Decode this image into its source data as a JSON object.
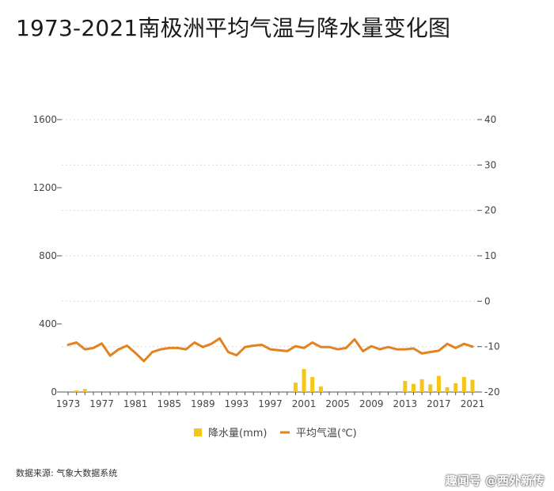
{
  "title": "1973-2021南极洲平均气温与降水量变化图",
  "source": "数据来源: 气象大数据系统",
  "watermark": "趣闻号 @西外新传",
  "colors": {
    "bar": "#f5c518",
    "line": "#e3821f",
    "grid": "#d9d9d9",
    "axis": "#555555"
  },
  "chart_data": {
    "type": "bar+line",
    "title": "1973-2021南极洲平均气温与降水量变化图",
    "x_tick_labels": [
      "1973",
      "1977",
      "1981",
      "1985",
      "1989",
      "1993",
      "1997",
      "2001",
      "2005",
      "2009",
      "2013",
      "2017",
      "2021"
    ],
    "y_left": {
      "lim": [
        0,
        1600
      ],
      "ticks": [
        0,
        400,
        800,
        1200,
        1600
      ]
    },
    "y_right": {
      "lim": [
        -20,
        40
      ],
      "ticks": [
        -20,
        -10,
        0,
        10,
        20,
        30,
        40
      ]
    },
    "grid": true,
    "legend_position": "bottom",
    "series": [
      {
        "name": "降水量(mm)",
        "type": "bar",
        "axis": "left",
        "x": [
          1973,
          1974,
          1975,
          1976,
          1977,
          1978,
          1979,
          1980,
          1981,
          1982,
          1983,
          1984,
          1985,
          1986,
          1987,
          1988,
          1989,
          1990,
          1991,
          1992,
          1993,
          1994,
          1995,
          1996,
          1997,
          1998,
          1999,
          2000,
          2001,
          2002,
          2003,
          2004,
          2005,
          2006,
          2007,
          2008,
          2009,
          2010,
          2011,
          2012,
          2013,
          2014,
          2015,
          2016,
          2017,
          2018,
          2019,
          2020,
          2021
        ],
        "values": [
          0,
          10,
          18,
          0,
          0,
          0,
          0,
          0,
          0,
          0,
          0,
          0,
          0,
          0,
          0,
          0,
          0,
          0,
          0,
          0,
          0,
          0,
          0,
          0,
          0,
          0,
          0,
          55,
          135,
          88,
          32,
          0,
          0,
          0,
          0,
          0,
          0,
          0,
          0,
          0,
          65,
          48,
          75,
          45,
          95,
          28,
          52,
          88,
          72
        ]
      },
      {
        "name": "平均气温(℃)",
        "type": "line",
        "axis": "right",
        "x": [
          1973,
          1974,
          1975,
          1976,
          1977,
          1978,
          1979,
          1980,
          1981,
          1982,
          1983,
          1984,
          1985,
          1986,
          1987,
          1988,
          1989,
          1990,
          1991,
          1992,
          1993,
          1994,
          1995,
          1996,
          1997,
          1998,
          1999,
          2000,
          2001,
          2002,
          2003,
          2004,
          2005,
          2006,
          2007,
          2008,
          2009,
          2010,
          2011,
          2012,
          2013,
          2014,
          2015,
          2016,
          2017,
          2018,
          2019,
          2020,
          2021
        ],
        "values": [
          -9.6,
          -9.1,
          -10.6,
          -10.3,
          -9.3,
          -12.0,
          -10.6,
          -9.8,
          -11.4,
          -13.2,
          -11.2,
          -10.6,
          -10.3,
          -10.3,
          -10.6,
          -9.1,
          -10.1,
          -9.4,
          -8.2,
          -11.2,
          -11.9,
          -10.1,
          -9.8,
          -9.6,
          -10.6,
          -10.8,
          -11.0,
          -9.9,
          -10.3,
          -9.1,
          -10.1,
          -10.1,
          -10.6,
          -10.3,
          -8.4,
          -11.0,
          -9.9,
          -10.6,
          -10.1,
          -10.6,
          -10.6,
          -10.4,
          -11.5,
          -11.2,
          -10.9,
          -9.4,
          -10.3,
          -9.4,
          -10.0
        ]
      }
    ]
  }
}
